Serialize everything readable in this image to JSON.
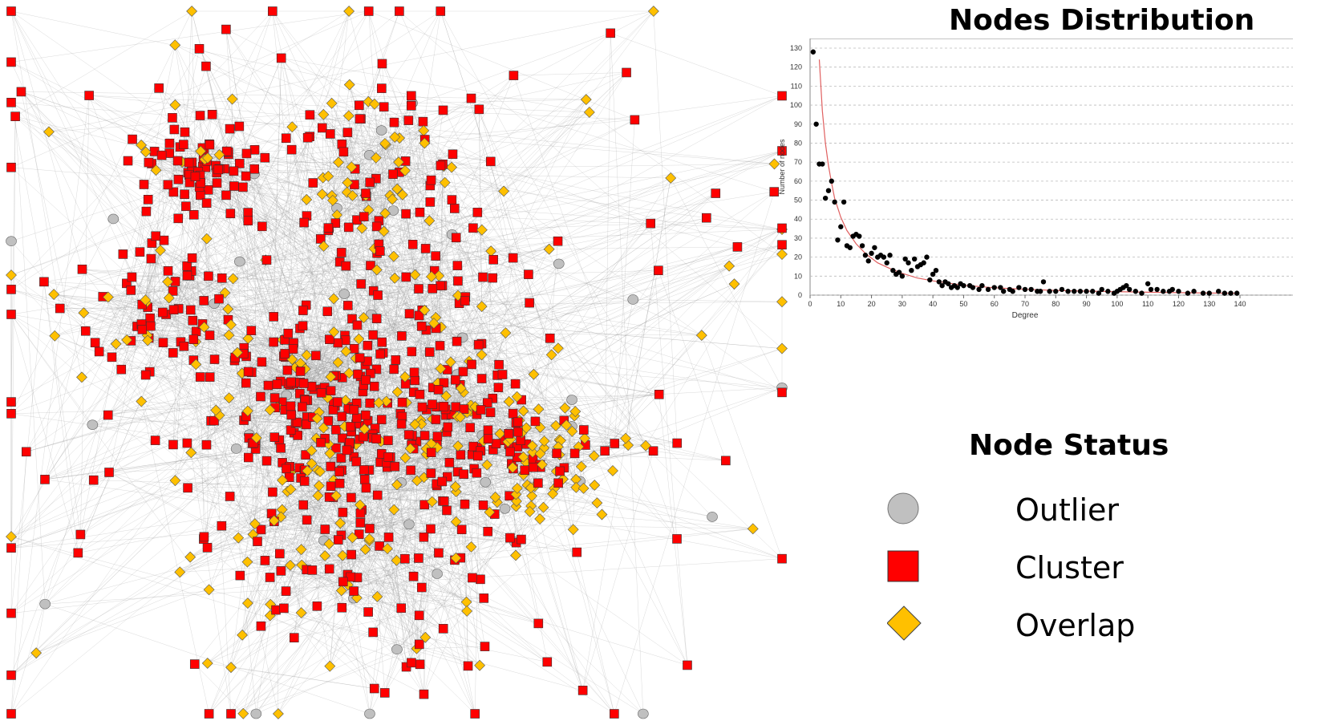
{
  "network": {
    "node_types": [
      "Outlier",
      "Cluster",
      "Overlap"
    ],
    "colors": {
      "outlier": "#c0c0c0",
      "cluster": "#ff0000",
      "overlap": "#ffc000",
      "edge": "#9a9a9a"
    }
  },
  "distribution": {
    "title": "Nodes Distribution",
    "chart_data": {
      "type": "scatter",
      "title": "Nodes Distribution",
      "xlabel": "Degree",
      "ylabel": "Number of nodes",
      "xlim": [
        0,
        140
      ],
      "ylim": [
        0,
        130
      ],
      "xticks": [
        0,
        10,
        20,
        30,
        40,
        50,
        60,
        70,
        80,
        90,
        100,
        110,
        120,
        130,
        140
      ],
      "yticks": [
        0,
        10,
        20,
        30,
        40,
        50,
        60,
        70,
        80,
        90,
        100,
        110,
        120,
        130
      ],
      "grid": true,
      "series": [
        {
          "type": "scatter",
          "color": "#000000",
          "points": [
            [
              1,
              128
            ],
            [
              2,
              90
            ],
            [
              3,
              69
            ],
            [
              4,
              69
            ],
            [
              5,
              51
            ],
            [
              6,
              55
            ],
            [
              7,
              60
            ],
            [
              8,
              49
            ],
            [
              9,
              29
            ],
            [
              10,
              36
            ],
            [
              11,
              49
            ],
            [
              12,
              26
            ],
            [
              13,
              25
            ],
            [
              14,
              31
            ],
            [
              15,
              32
            ],
            [
              16,
              31
            ],
            [
              17,
              26
            ],
            [
              18,
              21
            ],
            [
              19,
              18
            ],
            [
              20,
              22
            ],
            [
              21,
              25
            ],
            [
              22,
              20
            ],
            [
              23,
              21
            ],
            [
              24,
              20
            ],
            [
              25,
              17
            ],
            [
              26,
              21
            ],
            [
              27,
              13
            ],
            [
              28,
              11
            ],
            [
              29,
              12
            ],
            [
              30,
              10
            ],
            [
              31,
              19
            ],
            [
              32,
              17
            ],
            [
              33,
              13
            ],
            [
              34,
              19
            ],
            [
              35,
              15
            ],
            [
              36,
              16
            ],
            [
              37,
              17
            ],
            [
              38,
              20
            ],
            [
              39,
              8
            ],
            [
              40,
              11
            ],
            [
              41,
              13
            ],
            [
              42,
              7
            ],
            [
              43,
              5
            ],
            [
              44,
              7
            ],
            [
              45,
              6
            ],
            [
              46,
              4
            ],
            [
              47,
              5
            ],
            [
              48,
              4
            ],
            [
              49,
              6
            ],
            [
              50,
              5
            ],
            [
              52,
              5
            ],
            [
              53,
              4
            ],
            [
              55,
              3
            ],
            [
              56,
              5
            ],
            [
              58,
              3
            ],
            [
              60,
              4
            ],
            [
              62,
              4
            ],
            [
              63,
              2
            ],
            [
              65,
              3
            ],
            [
              66,
              2
            ],
            [
              68,
              4
            ],
            [
              70,
              3
            ],
            [
              72,
              3
            ],
            [
              74,
              2
            ],
            [
              75,
              2
            ],
            [
              76,
              7
            ],
            [
              78,
              2
            ],
            [
              80,
              2
            ],
            [
              82,
              3
            ],
            [
              84,
              2
            ],
            [
              86,
              2
            ],
            [
              88,
              2
            ],
            [
              90,
              2
            ],
            [
              92,
              2
            ],
            [
              94,
              1
            ],
            [
              95,
              3
            ],
            [
              97,
              2
            ],
            [
              99,
              1
            ],
            [
              100,
              2
            ],
            [
              101,
              3
            ],
            [
              102,
              4
            ],
            [
              103,
              5
            ],
            [
              104,
              3
            ],
            [
              106,
              2
            ],
            [
              108,
              1
            ],
            [
              110,
              6
            ],
            [
              111,
              3
            ],
            [
              113,
              3
            ],
            [
              115,
              2
            ],
            [
              117,
              2
            ],
            [
              118,
              3
            ],
            [
              120,
              2
            ],
            [
              123,
              1
            ],
            [
              125,
              2
            ],
            [
              128,
              1
            ],
            [
              130,
              1
            ],
            [
              133,
              2
            ],
            [
              135,
              1
            ],
            [
              137,
              1
            ],
            [
              139,
              1
            ]
          ]
        },
        {
          "type": "line",
          "color": "#e06060",
          "points": [
            [
              3,
              124
            ],
            [
              4,
              97
            ],
            [
              5,
              80
            ],
            [
              6,
              68
            ],
            [
              7,
              59
            ],
            [
              8,
              51
            ],
            [
              10,
              41
            ],
            [
              12,
              34
            ],
            [
              15,
              27
            ],
            [
              18,
              22
            ],
            [
              22,
              17
            ],
            [
              26,
              14
            ],
            [
              30,
              11.5
            ],
            [
              35,
              9
            ],
            [
              40,
              7.5
            ],
            [
              50,
              5.2
            ],
            [
              60,
              3.9
            ],
            [
              70,
              3.1
            ],
            [
              80,
              2.5
            ],
            [
              90,
              2.1
            ],
            [
              100,
              1.8
            ],
            [
              110,
              1.5
            ],
            [
              120,
              1.3
            ],
            [
              130,
              1.1
            ],
            [
              139,
              1
            ]
          ]
        }
      ]
    }
  },
  "status": {
    "title": "Node Status",
    "legend": [
      {
        "label": "Outlier",
        "shape": "circle",
        "color": "#c0c0c0"
      },
      {
        "label": "Cluster",
        "shape": "square",
        "color": "#ff0000"
      },
      {
        "label": "Overlap",
        "shape": "diamond",
        "color": "#ffc000"
      }
    ]
  }
}
